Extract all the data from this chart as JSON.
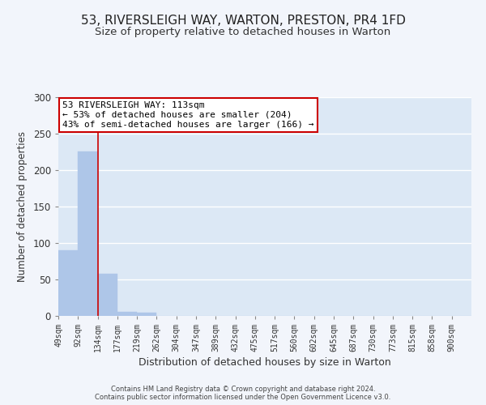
{
  "title": "53, RIVERSLEIGH WAY, WARTON, PRESTON, PR4 1FD",
  "subtitle": "Size of property relative to detached houses in Warton",
  "xlabel": "Distribution of detached houses by size in Warton",
  "ylabel": "Number of detached properties",
  "bar_labels": [
    "49sqm",
    "92sqm",
    "134sqm",
    "177sqm",
    "219sqm",
    "262sqm",
    "304sqm",
    "347sqm",
    "389sqm",
    "432sqm",
    "475sqm",
    "517sqm",
    "560sqm",
    "602sqm",
    "645sqm",
    "687sqm",
    "730sqm",
    "773sqm",
    "815sqm",
    "858sqm",
    "900sqm"
  ],
  "bar_values": [
    90,
    226,
    58,
    6,
    4,
    0,
    0,
    0,
    0,
    0,
    0,
    0,
    0,
    0,
    0,
    0,
    0,
    0,
    0,
    0,
    0
  ],
  "bar_color": "#aec6e8",
  "property_line_x": 2,
  "property_line_color": "#cc0000",
  "ylim": [
    0,
    300
  ],
  "yticks": [
    0,
    50,
    100,
    150,
    200,
    250,
    300
  ],
  "annotation_title": "53 RIVERSLEIGH WAY: 113sqm",
  "annotation_line1": "← 53% of detached houses are smaller (204)",
  "annotation_line2": "43% of semi-detached houses are larger (166) →",
  "annotation_box_color": "#ffffff",
  "annotation_border_color": "#cc0000",
  "footer1": "Contains HM Land Registry data © Crown copyright and database right 2024.",
  "footer2": "Contains public sector information licensed under the Open Government Licence v3.0.",
  "background_color": "#f2f5fb",
  "plot_background": "#dce8f5",
  "grid_color": "#ffffff",
  "title_fontsize": 11,
  "subtitle_fontsize": 9.5
}
